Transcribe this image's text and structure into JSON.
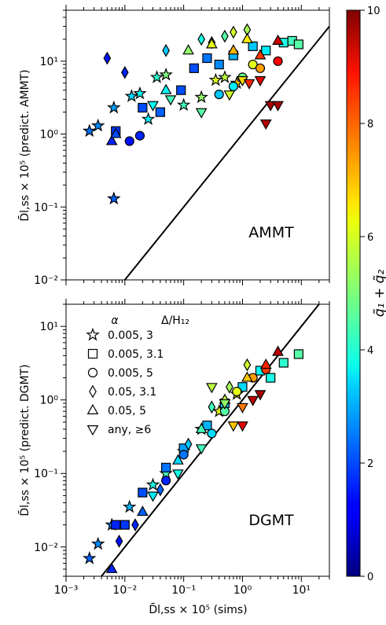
{
  "colorbar": {
    "label": "q̃₁ + q̃₂",
    "min": 0,
    "max": 10,
    "ticks": [
      "0",
      "2",
      "4",
      "6",
      "8",
      "10"
    ],
    "colormap": "jet"
  },
  "legend": {
    "header_alpha": "α",
    "header_delta": "Δ/H₁₂",
    "entries": [
      {
        "marker": "star",
        "text": "0.005,  3"
      },
      {
        "marker": "square",
        "text": "0.005,  3.1"
      },
      {
        "marker": "circle",
        "text": "0.005,  5"
      },
      {
        "marker": "diamond",
        "text": "0.05,  3.1"
      },
      {
        "marker": "triangle-up",
        "text": "0.05,   5"
      },
      {
        "marker": "triangle-down",
        "text": "any,   ≥6"
      }
    ]
  },
  "axes": {
    "xlabel": "D̄l,ss × 10⁵ (sims)",
    "xticks": [
      "10⁻³",
      "10⁻²",
      "10⁻¹",
      "10⁰",
      "10¹"
    ],
    "yticks_top": [
      "10⁻²",
      "10⁻¹",
      "10⁰",
      "10¹"
    ],
    "yticks_bottom": [
      "10⁻²",
      "10⁻¹",
      "10⁰",
      "10¹"
    ]
  },
  "chart_data": [
    {
      "type": "scatter",
      "panel_label": "AMMT",
      "ylabel": "D̄l,ss × 10⁵ (predict. AMMT)",
      "xscale": "log",
      "yscale": "log",
      "xlim": [
        0.001,
        30
      ],
      "ylim": [
        0.01,
        50
      ],
      "reference_line": "y = x",
      "points": [
        {
          "x": 0.0025,
          "y": 1.1,
          "m": "star",
          "c": 2.4
        },
        {
          "x": 0.0035,
          "y": 1.3,
          "m": "star",
          "c": 2.6
        },
        {
          "x": 0.0065,
          "y": 0.13,
          "m": "star",
          "c": 2.2
        },
        {
          "x": 0.0065,
          "y": 2.3,
          "m": "star",
          "c": 2.8
        },
        {
          "x": 0.013,
          "y": 3.3,
          "m": "star",
          "c": 3.4
        },
        {
          "x": 0.018,
          "y": 3.6,
          "m": "star",
          "c": 3.8
        },
        {
          "x": 0.025,
          "y": 1.6,
          "m": "star",
          "c": 3.6
        },
        {
          "x": 0.035,
          "y": 6.0,
          "m": "star",
          "c": 4.2
        },
        {
          "x": 0.05,
          "y": 6.5,
          "m": "star",
          "c": 5.0
        },
        {
          "x": 0.1,
          "y": 2.5,
          "m": "star",
          "c": 4.4
        },
        {
          "x": 0.2,
          "y": 3.2,
          "m": "star",
          "c": 5.2
        },
        {
          "x": 0.35,
          "y": 5.5,
          "m": "star",
          "c": 6.0
        },
        {
          "x": 0.5,
          "y": 6.0,
          "m": "star",
          "c": 5.6
        },
        {
          "x": 0.8,
          "y": 5.0,
          "m": "star",
          "c": 6.8
        },
        {
          "x": 0.007,
          "y": 1.1,
          "m": "square",
          "c": 1.8
        },
        {
          "x": 0.02,
          "y": 2.3,
          "m": "square",
          "c": 2.0
        },
        {
          "x": 0.04,
          "y": 2.0,
          "m": "square",
          "c": 2.2
        },
        {
          "x": 0.09,
          "y": 4.0,
          "m": "square",
          "c": 2.0
        },
        {
          "x": 0.15,
          "y": 8.0,
          "m": "square",
          "c": 2.0
        },
        {
          "x": 0.25,
          "y": 11,
          "m": "square",
          "c": 2.4
        },
        {
          "x": 0.4,
          "y": 9.0,
          "m": "square",
          "c": 2.6
        },
        {
          "x": 0.7,
          "y": 12,
          "m": "square",
          "c": 3.0
        },
        {
          "x": 1.5,
          "y": 16,
          "m": "square",
          "c": 3.2
        },
        {
          "x": 2.5,
          "y": 14,
          "m": "square",
          "c": 3.6
        },
        {
          "x": 5,
          "y": 18,
          "m": "square",
          "c": 4.0
        },
        {
          "x": 7,
          "y": 19,
          "m": "square",
          "c": 4.4
        },
        {
          "x": 9,
          "y": 17,
          "m": "square",
          "c": 4.6
        },
        {
          "x": 0.012,
          "y": 0.8,
          "m": "circle",
          "c": 1.4
        },
        {
          "x": 0.018,
          "y": 0.95,
          "m": "circle",
          "c": 1.6
        },
        {
          "x": 0.4,
          "y": 3.5,
          "m": "circle",
          "c": 3.2
        },
        {
          "x": 0.7,
          "y": 4.5,
          "m": "circle",
          "c": 3.6
        },
        {
          "x": 1.0,
          "y": 6.0,
          "m": "circle",
          "c": 4.8
        },
        {
          "x": 1.5,
          "y": 9.0,
          "m": "circle",
          "c": 6.0
        },
        {
          "x": 2.0,
          "y": 8.0,
          "m": "circle",
          "c": 7.2
        },
        {
          "x": 4,
          "y": 10,
          "m": "circle",
          "c": 8.8
        },
        {
          "x": 0.005,
          "y": 11,
          "m": "diamond",
          "c": 1.4
        },
        {
          "x": 0.01,
          "y": 7,
          "m": "diamond",
          "c": 1.6
        },
        {
          "x": 0.05,
          "y": 14,
          "m": "diamond",
          "c": 3.2
        },
        {
          "x": 0.2,
          "y": 20,
          "m": "diamond",
          "c": 4.0
        },
        {
          "x": 0.3,
          "y": 18,
          "m": "diamond",
          "c": 5.4
        },
        {
          "x": 0.5,
          "y": 22,
          "m": "diamond",
          "c": 4.6
        },
        {
          "x": 0.7,
          "y": 25,
          "m": "diamond",
          "c": 5.8
        },
        {
          "x": 1.2,
          "y": 27,
          "m": "diamond",
          "c": 5.4
        },
        {
          "x": 0.006,
          "y": 0.8,
          "m": "triangle-up",
          "c": 1.6
        },
        {
          "x": 0.007,
          "y": 1.0,
          "m": "triangle-up",
          "c": 2.0
        },
        {
          "x": 0.05,
          "y": 4.0,
          "m": "triangle-up",
          "c": 3.8
        },
        {
          "x": 0.12,
          "y": 14,
          "m": "triangle-up",
          "c": 5.2
        },
        {
          "x": 0.3,
          "y": 17,
          "m": "triangle-up",
          "c": 6.0
        },
        {
          "x": 0.7,
          "y": 14,
          "m": "triangle-up",
          "c": 7.0
        },
        {
          "x": 1.2,
          "y": 20,
          "m": "triangle-up",
          "c": 6.4
        },
        {
          "x": 2,
          "y": 12,
          "m": "triangle-up",
          "c": 8.2
        },
        {
          "x": 4,
          "y": 19,
          "m": "triangle-up",
          "c": 9.2
        },
        {
          "x": 0.03,
          "y": 2.5,
          "m": "triangle-down",
          "c": 3.8
        },
        {
          "x": 0.06,
          "y": 3.0,
          "m": "triangle-down",
          "c": 4.4
        },
        {
          "x": 0.2,
          "y": 2.0,
          "m": "triangle-down",
          "c": 4.6
        },
        {
          "x": 0.6,
          "y": 3.5,
          "m": "triangle-down",
          "c": 5.8
        },
        {
          "x": 1.0,
          "y": 5.5,
          "m": "triangle-down",
          "c": 6.6
        },
        {
          "x": 1.3,
          "y": 5.0,
          "m": "triangle-down",
          "c": 8.4
        },
        {
          "x": 2.0,
          "y": 5.5,
          "m": "triangle-down",
          "c": 9.0
        },
        {
          "x": 2.5,
          "y": 1.4,
          "m": "triangle-down",
          "c": 9.4
        },
        {
          "x": 3.0,
          "y": 2.5,
          "m": "triangle-down",
          "c": 9.6
        },
        {
          "x": 4.0,
          "y": 2.5,
          "m": "triangle-down",
          "c": 9.6
        }
      ]
    },
    {
      "type": "scatter",
      "panel_label": "DGMT",
      "ylabel": "D̄l,ss × 10⁵ (predict. DGMT)",
      "xscale": "log",
      "yscale": "log",
      "xlim": [
        0.001,
        30
      ],
      "ylim": [
        0.004,
        20
      ],
      "reference_line": "y = x",
      "points": [
        {
          "x": 0.0025,
          "y": 0.007,
          "m": "star",
          "c": 2.2
        },
        {
          "x": 0.0035,
          "y": 0.011,
          "m": "star",
          "c": 2.6
        },
        {
          "x": 0.006,
          "y": 0.02,
          "m": "star",
          "c": 2.4
        },
        {
          "x": 0.012,
          "y": 0.035,
          "m": "star",
          "c": 3.0
        },
        {
          "x": 0.03,
          "y": 0.07,
          "m": "star",
          "c": 4.0
        },
        {
          "x": 0.05,
          "y": 0.1,
          "m": "star",
          "c": 4.4
        },
        {
          "x": 0.1,
          "y": 0.2,
          "m": "star",
          "c": 5.0
        },
        {
          "x": 0.2,
          "y": 0.4,
          "m": "star",
          "c": 5.4
        },
        {
          "x": 0.4,
          "y": 0.7,
          "m": "star",
          "c": 6.0
        },
        {
          "x": 0.8,
          "y": 1.2,
          "m": "star",
          "c": 6.6
        },
        {
          "x": 0.007,
          "y": 0.02,
          "m": "square",
          "c": 1.6
        },
        {
          "x": 0.01,
          "y": 0.02,
          "m": "square",
          "c": 1.8
        },
        {
          "x": 0.02,
          "y": 0.055,
          "m": "square",
          "c": 2.0
        },
        {
          "x": 0.05,
          "y": 0.12,
          "m": "square",
          "c": 2.4
        },
        {
          "x": 0.1,
          "y": 0.22,
          "m": "square",
          "c": 2.8
        },
        {
          "x": 0.25,
          "y": 0.45,
          "m": "square",
          "c": 3.0
        },
        {
          "x": 0.5,
          "y": 0.9,
          "m": "square",
          "c": 3.2
        },
        {
          "x": 1.0,
          "y": 1.5,
          "m": "square",
          "c": 3.4
        },
        {
          "x": 2.0,
          "y": 2.5,
          "m": "square",
          "c": 3.8
        },
        {
          "x": 3.0,
          "y": 2.0,
          "m": "square",
          "c": 4.0
        },
        {
          "x": 5.0,
          "y": 3.2,
          "m": "square",
          "c": 4.2
        },
        {
          "x": 9.0,
          "y": 4.2,
          "m": "square",
          "c": 4.6
        },
        {
          "x": 0.05,
          "y": 0.08,
          "m": "circle",
          "c": 1.6
        },
        {
          "x": 0.1,
          "y": 0.18,
          "m": "circle",
          "c": 2.4
        },
        {
          "x": 0.3,
          "y": 0.35,
          "m": "circle",
          "c": 3.4
        },
        {
          "x": 0.5,
          "y": 0.7,
          "m": "circle",
          "c": 4.6
        },
        {
          "x": 0.8,
          "y": 1.3,
          "m": "circle",
          "c": 6.0
        },
        {
          "x": 1.5,
          "y": 2.0,
          "m": "circle",
          "c": 7.2
        },
        {
          "x": 2.5,
          "y": 2.6,
          "m": "circle",
          "c": 8.2
        },
        {
          "x": 0.008,
          "y": 0.012,
          "m": "diamond",
          "c": 1.4
        },
        {
          "x": 0.015,
          "y": 0.02,
          "m": "diamond",
          "c": 1.6
        },
        {
          "x": 0.04,
          "y": 0.06,
          "m": "diamond",
          "c": 2.2
        },
        {
          "x": 0.12,
          "y": 0.25,
          "m": "diamond",
          "c": 3.2
        },
        {
          "x": 0.3,
          "y": 0.8,
          "m": "diamond",
          "c": 4.4
        },
        {
          "x": 0.6,
          "y": 1.5,
          "m": "diamond",
          "c": 5.4
        },
        {
          "x": 1.2,
          "y": 3.0,
          "m": "diamond",
          "c": 5.8
        },
        {
          "x": 0.006,
          "y": 0.005,
          "m": "triangle-up",
          "c": 1.6
        },
        {
          "x": 0.02,
          "y": 0.03,
          "m": "triangle-up",
          "c": 2.2
        },
        {
          "x": 0.08,
          "y": 0.15,
          "m": "triangle-up",
          "c": 3.4
        },
        {
          "x": 0.2,
          "y": 0.4,
          "m": "triangle-up",
          "c": 4.4
        },
        {
          "x": 0.5,
          "y": 1.0,
          "m": "triangle-up",
          "c": 5.6
        },
        {
          "x": 1.2,
          "y": 2.0,
          "m": "triangle-up",
          "c": 6.8
        },
        {
          "x": 2.5,
          "y": 3.0,
          "m": "triangle-up",
          "c": 8.4
        },
        {
          "x": 4.0,
          "y": 4.5,
          "m": "triangle-up",
          "c": 9.4
        },
        {
          "x": 0.03,
          "y": 0.05,
          "m": "triangle-down",
          "c": 3.6
        },
        {
          "x": 0.08,
          "y": 0.1,
          "m": "triangle-down",
          "c": 4.0
        },
        {
          "x": 0.2,
          "y": 0.22,
          "m": "triangle-down",
          "c": 4.4
        },
        {
          "x": 0.3,
          "y": 1.5,
          "m": "triangle-down",
          "c": 5.6
        },
        {
          "x": 0.5,
          "y": 0.9,
          "m": "triangle-down",
          "c": 5.2
        },
        {
          "x": 0.7,
          "y": 0.45,
          "m": "triangle-down",
          "c": 6.8
        },
        {
          "x": 1.0,
          "y": 0.8,
          "m": "triangle-down",
          "c": 7.6
        },
        {
          "x": 1.0,
          "y": 0.45,
          "m": "triangle-down",
          "c": 9.0
        },
        {
          "x": 1.5,
          "y": 1.0,
          "m": "triangle-down",
          "c": 9.4
        },
        {
          "x": 2.0,
          "y": 1.2,
          "m": "triangle-down",
          "c": 9.6
        }
      ]
    }
  ]
}
